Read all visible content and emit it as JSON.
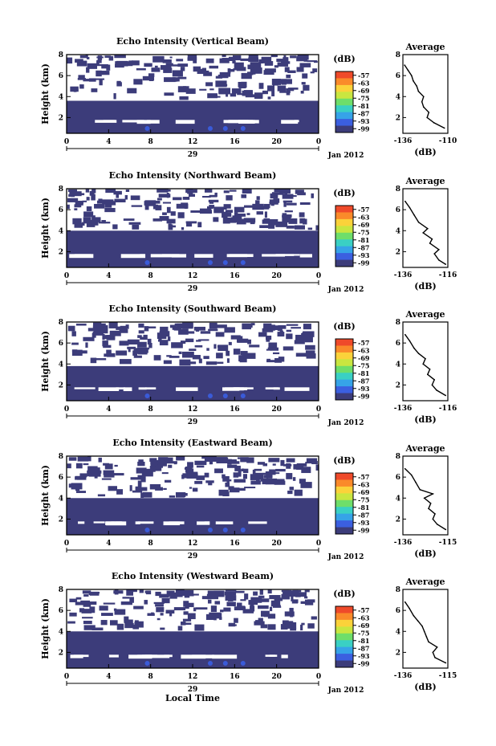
{
  "chart_data": [
    {
      "type": "heatmap",
      "title": "Echo Intensity (Vertical Beam)",
      "ylabel": "Height (km)",
      "yticks": [
        "2",
        "4",
        "6",
        "8"
      ],
      "ylim": [
        0.5,
        8
      ],
      "xticks": [
        "0",
        "4",
        "8",
        "12",
        "16",
        "20",
        "0"
      ],
      "xlim": [
        0,
        24
      ],
      "day_label": "29",
      "date_label": "Jan 2012",
      "colorbar": {
        "unit": "(dB)",
        "labels": [
          "-57",
          "-63",
          "-69",
          "-75",
          "-81",
          "-87",
          "-93",
          "-99"
        ]
      },
      "layers": [
        {
          "from_km": 0.5,
          "to_km": 3.6,
          "coverage": "continuous"
        },
        {
          "from_km": 3.6,
          "to_km": 8.0,
          "coverage": "sparse"
        }
      ],
      "profile": {
        "title": "Average",
        "xlabel": "(dB)",
        "xticks": [
          "-136",
          "-110"
        ],
        "yticks": [
          "2",
          "4",
          "6",
          "8"
        ],
        "points": [
          [
            -112,
            1.0
          ],
          [
            -118,
            1.5
          ],
          [
            -122,
            2.0
          ],
          [
            -121,
            2.5
          ],
          [
            -124,
            3.0
          ],
          [
            -125,
            3.5
          ],
          [
            -124,
            4.0
          ],
          [
            -127,
            4.5
          ],
          [
            -128,
            5.0
          ],
          [
            -130,
            5.5
          ],
          [
            -131,
            6.0
          ],
          [
            -133,
            6.5
          ],
          [
            -135,
            7.0
          ]
        ]
      }
    },
    {
      "type": "heatmap",
      "title": "Echo Intensity (Northward Beam)",
      "ylabel": "Height (km)",
      "yticks": [
        "2",
        "4",
        "6",
        "8"
      ],
      "ylim": [
        0.5,
        8
      ],
      "xticks": [
        "0",
        "4",
        "8",
        "12",
        "16",
        "20",
        "0"
      ],
      "xlim": [
        0,
        24
      ],
      "day_label": "29",
      "date_label": "Jan 2012",
      "colorbar": {
        "unit": "(dB)",
        "labels": [
          "-57",
          "-63",
          "-69",
          "-75",
          "-81",
          "-87",
          "-93",
          "-99"
        ]
      },
      "layers": [
        {
          "from_km": 0.5,
          "to_km": 4.0,
          "coverage": "continuous"
        },
        {
          "from_km": 4.0,
          "to_km": 8.0,
          "coverage": "sparse"
        }
      ],
      "profile": {
        "title": "Average",
        "xlabel": "(dB)",
        "xticks": [
          "-136",
          "-116"
        ],
        "yticks": [
          "2",
          "4",
          "6",
          "8"
        ],
        "points": [
          [
            -117,
            0.8
          ],
          [
            -120,
            1.2
          ],
          [
            -122,
            1.8
          ],
          [
            -120,
            2.2
          ],
          [
            -124,
            2.8
          ],
          [
            -123,
            3.2
          ],
          [
            -127,
            3.8
          ],
          [
            -125,
            4.2
          ],
          [
            -129,
            4.8
          ],
          [
            -131,
            5.5
          ],
          [
            -133,
            6.2
          ],
          [
            -135,
            6.8
          ]
        ]
      }
    },
    {
      "type": "heatmap",
      "title": "Echo Intensity (Southward Beam)",
      "ylabel": "Height (km)",
      "yticks": [
        "2",
        "4",
        "6",
        "8"
      ],
      "ylim": [
        0.5,
        8
      ],
      "xticks": [
        "0",
        "4",
        "8",
        "12",
        "16",
        "20",
        "0"
      ],
      "xlim": [
        0,
        24
      ],
      "day_label": "29",
      "date_label": "Jan 2012",
      "colorbar": {
        "unit": "(dB)",
        "labels": [
          "-57",
          "-63",
          "-69",
          "-75",
          "-81",
          "-87",
          "-93",
          "-99"
        ]
      },
      "layers": [
        {
          "from_km": 0.5,
          "to_km": 3.8,
          "coverage": "continuous"
        },
        {
          "from_km": 3.8,
          "to_km": 8.0,
          "coverage": "sparse"
        }
      ],
      "profile": {
        "title": "Average",
        "xlabel": "(dB)",
        "xticks": [
          "-136",
          "-116"
        ],
        "yticks": [
          "2",
          "4",
          "6",
          "8"
        ],
        "points": [
          [
            -117,
            1.0
          ],
          [
            -121,
            1.5
          ],
          [
            -123,
            2.0
          ],
          [
            -122,
            2.5
          ],
          [
            -125,
            3.0
          ],
          [
            -124,
            3.5
          ],
          [
            -127,
            4.0
          ],
          [
            -126,
            4.5
          ],
          [
            -129,
            5.0
          ],
          [
            -131,
            5.5
          ],
          [
            -133,
            6.2
          ],
          [
            -135,
            6.8
          ]
        ]
      }
    },
    {
      "type": "heatmap",
      "title": "Echo Intensity (Eastward Beam)",
      "ylabel": "Height (km)",
      "yticks": [
        "2",
        "4",
        "6",
        "8"
      ],
      "ylim": [
        0.5,
        8
      ],
      "xticks": [
        "0",
        "4",
        "8",
        "12",
        "16",
        "20",
        "0"
      ],
      "xlim": [
        0,
        24
      ],
      "day_label": "29",
      "date_label": "Jan 2012",
      "colorbar": {
        "unit": "(dB)",
        "labels": [
          "-57",
          "-63",
          "-69",
          "-75",
          "-81",
          "-87",
          "-93",
          "-99"
        ]
      },
      "layers": [
        {
          "from_km": 0.5,
          "to_km": 4.0,
          "coverage": "continuous"
        },
        {
          "from_km": 4.0,
          "to_km": 8.0,
          "coverage": "sparse"
        }
      ],
      "profile": {
        "title": "Average",
        "xlabel": "(dB)",
        "xticks": [
          "-136",
          "-115"
        ],
        "yticks": [
          "2",
          "4",
          "6",
          "8"
        ],
        "points": [
          [
            -116,
            1.0
          ],
          [
            -120,
            1.5
          ],
          [
            -122,
            2.0
          ],
          [
            -121,
            2.5
          ],
          [
            -124,
            3.0
          ],
          [
            -123,
            3.5
          ],
          [
            -126,
            4.0
          ],
          [
            -122,
            4.4
          ],
          [
            -128,
            4.8
          ],
          [
            -130,
            5.5
          ],
          [
            -132,
            6.2
          ],
          [
            -135,
            6.8
          ]
        ]
      }
    },
    {
      "type": "heatmap",
      "title": "Echo Intensity (Westward Beam)",
      "ylabel": "Height (km)",
      "yticks": [
        "2",
        "4",
        "6",
        "8"
      ],
      "ylim": [
        0.5,
        8
      ],
      "xticks": [
        "0",
        "4",
        "8",
        "12",
        "16",
        "20",
        "0"
      ],
      "xlim": [
        0,
        24
      ],
      "day_label": "29",
      "date_label": "Jan 2012",
      "xlabel": "Local Time",
      "colorbar": {
        "unit": "(dB)",
        "labels": [
          "-57",
          "-63",
          "-69",
          "-75",
          "-81",
          "-87",
          "-93",
          "-99"
        ]
      },
      "layers": [
        {
          "from_km": 0.5,
          "to_km": 4.0,
          "coverage": "continuous"
        },
        {
          "from_km": 4.0,
          "to_km": 8.0,
          "coverage": "sparse"
        }
      ],
      "profile": {
        "title": "Average",
        "xlabel": "(dB)",
        "xticks": [
          "-136",
          "-115"
        ],
        "yticks": [
          "2",
          "4",
          "6",
          "8"
        ],
        "points": [
          [
            -116,
            1.0
          ],
          [
            -121,
            1.5
          ],
          [
            -122,
            2.0
          ],
          [
            -120,
            2.5
          ],
          [
            -124,
            3.0
          ],
          [
            -125,
            3.5
          ],
          [
            -126,
            4.0
          ],
          [
            -127,
            4.5
          ],
          [
            -129,
            5.0
          ],
          [
            -131,
            5.5
          ],
          [
            -133,
            6.2
          ],
          [
            -135,
            6.8
          ]
        ]
      }
    }
  ],
  "colors": {
    "fill_low": "#3c3c7a",
    "fill_blob": "#3a5bd8",
    "scale": [
      "#ef4a2a",
      "#fa8a2a",
      "#fbd23a",
      "#c9e640",
      "#6ede6a",
      "#3ad0c4",
      "#36a3e8",
      "#3b5fe0",
      "#3c3c7a"
    ]
  }
}
